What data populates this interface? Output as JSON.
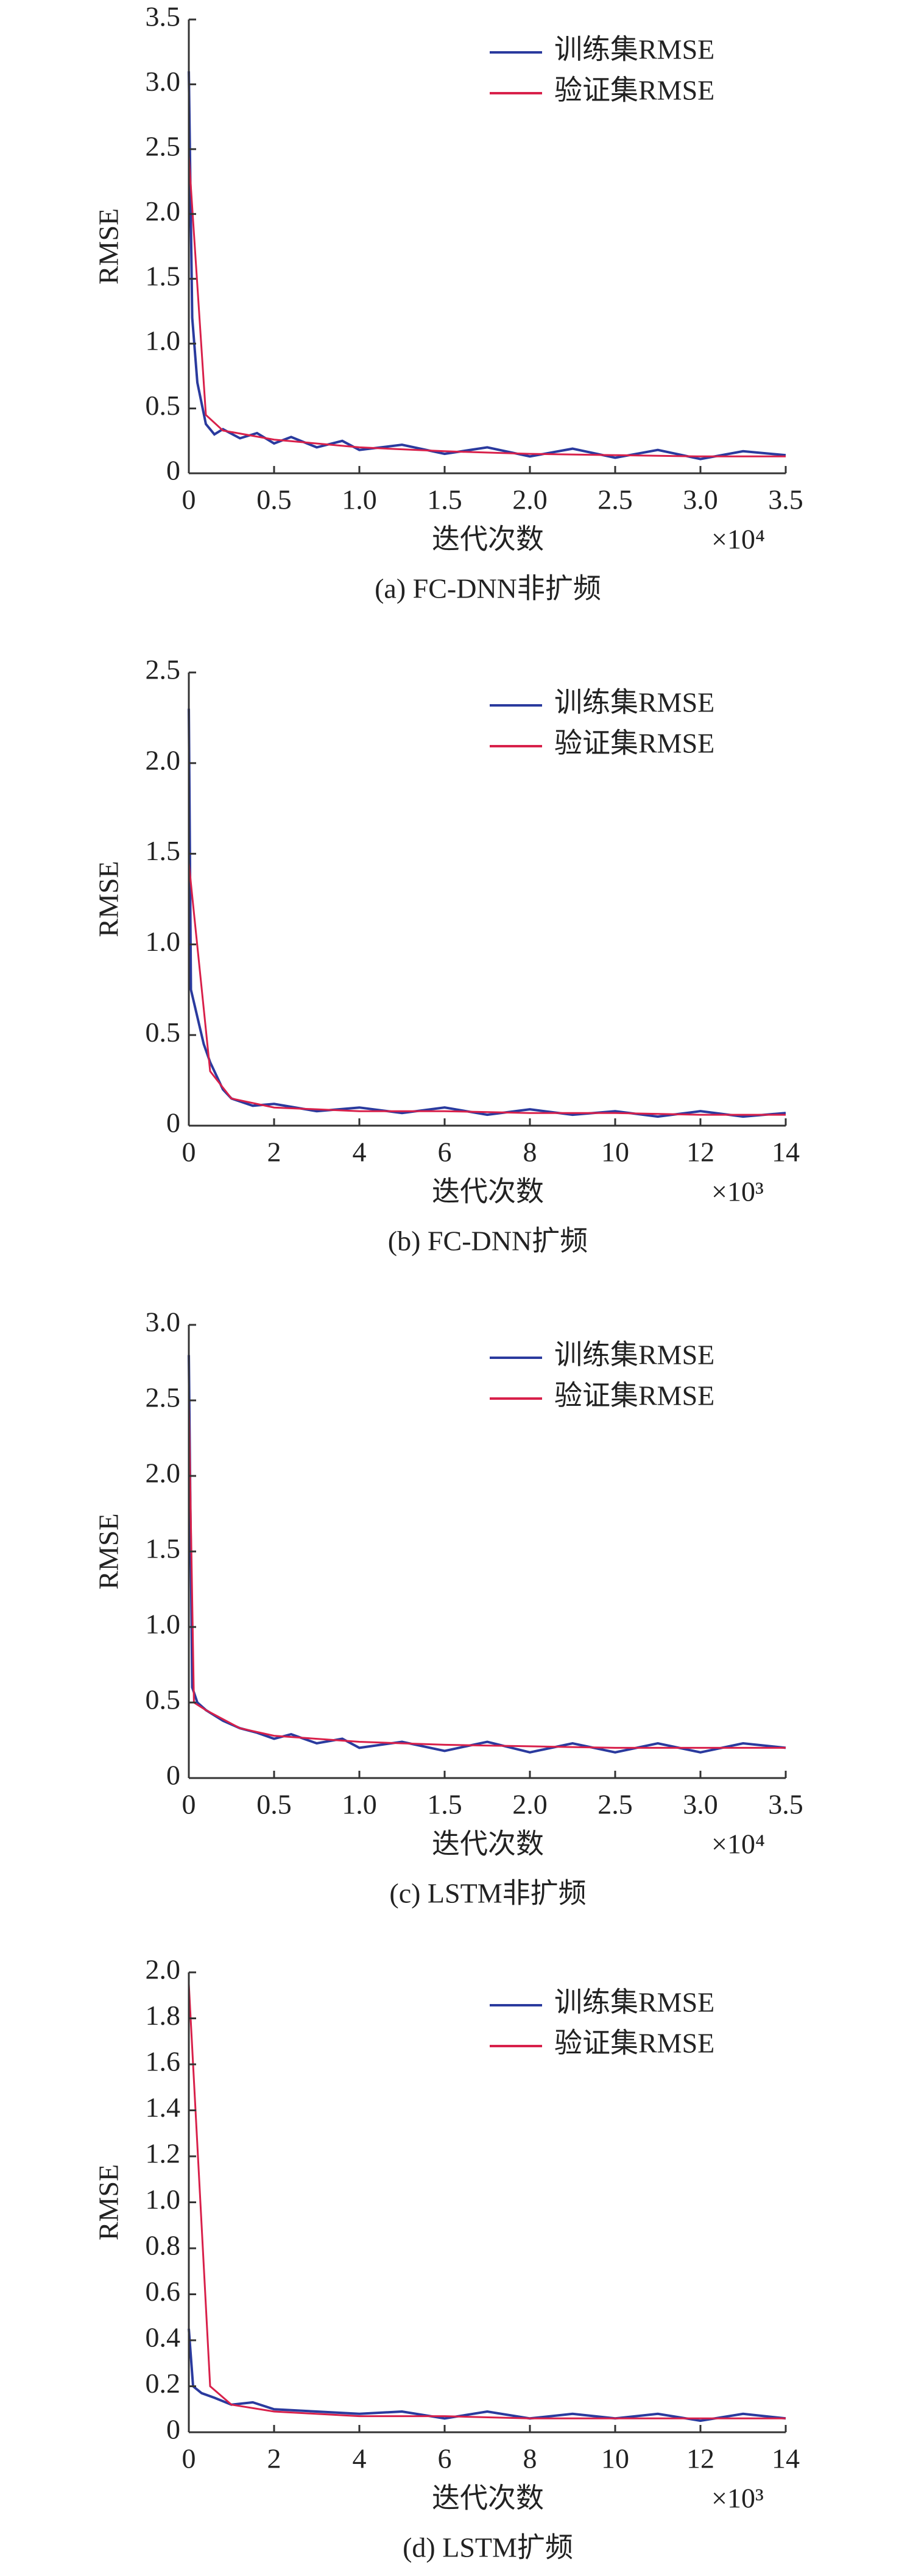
{
  "chart_data": [
    {
      "type": "line",
      "caption": "(a) FC-DNN非扩频",
      "ylabel": "RMSE",
      "xlabel": "迭代次数",
      "x_multiplier": "×10⁴",
      "xlim": [
        0,
        3.5
      ],
      "xticks": [
        0,
        0.5,
        {
          "value": 1,
          "label": "1.0"
        },
        1.5,
        {
          "value": 2,
          "label": "2.0"
        },
        2.5,
        {
          "value": 3,
          "label": "3.0"
        },
        3.5
      ],
      "ylim": [
        0,
        3.5
      ],
      "yticks": [
        0,
        0.5,
        {
          "value": 1,
          "label": "1.0"
        },
        1.5,
        {
          "value": 2,
          "label": "2.0"
        },
        2.5,
        {
          "value": 3,
          "label": "3.0"
        },
        3.5
      ],
      "legend": "upper right",
      "series": [
        {
          "name": "训练集RMSE",
          "color": "#2a3a9e",
          "x": [
            0,
            0.02,
            0.05,
            0.1,
            0.15,
            0.2,
            0.3,
            0.4,
            0.5,
            0.6,
            0.75,
            0.9,
            1,
            1.25,
            1.5,
            1.75,
            2,
            2.25,
            2.5,
            2.75,
            3,
            3.25,
            3.5
          ],
          "values": [
            3.1,
            1.2,
            0.7,
            0.38,
            0.3,
            0.34,
            0.27,
            0.31,
            0.23,
            0.28,
            0.2,
            0.25,
            0.18,
            0.22,
            0.15,
            0.2,
            0.13,
            0.19,
            0.12,
            0.18,
            0.11,
            0.17,
            0.14
          ]
        },
        {
          "name": "验证集RMSE",
          "color": "#d8204a",
          "x": [
            0,
            0.1,
            0.2,
            0.5,
            1,
            1.5,
            2,
            2.5,
            3,
            3.5
          ],
          "values": [
            2.45,
            0.45,
            0.33,
            0.26,
            0.2,
            0.17,
            0.15,
            0.14,
            0.13,
            0.13
          ]
        }
      ]
    },
    {
      "type": "line",
      "caption": "(b) FC-DNN扩频",
      "ylabel": "RMSE",
      "xlabel": "迭代次数",
      "x_multiplier": "×10³",
      "xlim": [
        0,
        14
      ],
      "xticks": [
        0,
        2,
        4,
        6,
        8,
        10,
        12,
        14
      ],
      "ylim": [
        0,
        2.5
      ],
      "yticks": [
        0,
        0.5,
        {
          "value": 1,
          "label": "1.0"
        },
        1.5,
        {
          "value": 2,
          "label": "2.0"
        },
        2.5
      ],
      "legend": "upper right",
      "series": [
        {
          "name": "训练集RMSE",
          "color": "#2a3a9e",
          "x": [
            0,
            0.05,
            0.2,
            0.35,
            0.5,
            0.8,
            1,
            1.5,
            2,
            3,
            4,
            5,
            6,
            7,
            8,
            9,
            10,
            11,
            12,
            13,
            14
          ],
          "values": [
            2.3,
            0.75,
            0.6,
            0.45,
            0.35,
            0.2,
            0.15,
            0.11,
            0.12,
            0.08,
            0.1,
            0.07,
            0.1,
            0.06,
            0.09,
            0.06,
            0.08,
            0.05,
            0.08,
            0.05,
            0.07
          ]
        },
        {
          "name": "验证集RMSE",
          "color": "#d8204a",
          "x": [
            0,
            0.5,
            1,
            2,
            4,
            6,
            8,
            10,
            12,
            14
          ],
          "values": [
            1.45,
            0.3,
            0.15,
            0.1,
            0.08,
            0.08,
            0.07,
            0.07,
            0.06,
            0.06
          ]
        }
      ]
    },
    {
      "type": "line",
      "caption": "(c) LSTM非扩频",
      "ylabel": "RMSE",
      "xlabel": "迭代次数",
      "x_multiplier": "×10⁴",
      "xlim": [
        0,
        3.5
      ],
      "xticks": [
        0,
        0.5,
        {
          "value": 1,
          "label": "1.0"
        },
        1.5,
        {
          "value": 2,
          "label": "2.0"
        },
        2.5,
        {
          "value": 3,
          "label": "3.0"
        },
        3.5
      ],
      "ylim": [
        0,
        3
      ],
      "yticks": [
        0,
        0.5,
        {
          "value": 1,
          "label": "1.0"
        },
        1.5,
        {
          "value": 2,
          "label": "2.0"
        },
        2.5,
        {
          "value": 3,
          "label": "3.0"
        }
      ],
      "legend": "upper right",
      "series": [
        {
          "name": "训练集RMSE",
          "color": "#2a3a9e",
          "x": [
            0,
            0.02,
            0.05,
            0.1,
            0.2,
            0.3,
            0.4,
            0.5,
            0.6,
            0.75,
            0.9,
            1,
            1.25,
            1.5,
            1.75,
            2,
            2.25,
            2.5,
            2.75,
            3,
            3.25,
            3.5
          ],
          "values": [
            2.8,
            0.6,
            0.5,
            0.45,
            0.38,
            0.33,
            0.3,
            0.26,
            0.29,
            0.23,
            0.26,
            0.2,
            0.24,
            0.18,
            0.24,
            0.17,
            0.23,
            0.17,
            0.23,
            0.17,
            0.23,
            0.2
          ]
        },
        {
          "name": "验证集RMSE",
          "color": "#d8204a",
          "x": [
            0,
            0.03,
            0.1,
            0.3,
            0.5,
            1,
            1.5,
            2,
            2.5,
            3,
            3.5
          ],
          "values": [
            2.5,
            0.5,
            0.45,
            0.33,
            0.28,
            0.24,
            0.22,
            0.21,
            0.2,
            0.2,
            0.2
          ]
        }
      ]
    },
    {
      "type": "line",
      "caption": "(d) LSTM扩频",
      "ylabel": "RMSE",
      "xlabel": "迭代次数",
      "x_multiplier": "×10³",
      "xlim": [
        0,
        14
      ],
      "xticks": [
        0,
        2,
        4,
        6,
        8,
        10,
        12,
        14
      ],
      "ylim": [
        0,
        2
      ],
      "yticks": [
        0,
        0.2,
        0.4,
        0.6,
        0.8,
        {
          "value": 1,
          "label": "1.0"
        },
        1.2,
        1.4,
        1.6,
        1.8,
        {
          "value": 2,
          "label": "2.0"
        }
      ],
      "legend": "upper right",
      "series": [
        {
          "name": "训练集RMSE",
          "color": "#2a3a9e",
          "x": [
            0,
            0.1,
            0.3,
            0.6,
            1,
            1.5,
            2,
            3,
            4,
            5,
            6,
            7,
            8,
            9,
            10,
            11,
            12,
            13,
            14
          ],
          "values": [
            0.45,
            0.2,
            0.17,
            0.15,
            0.12,
            0.13,
            0.1,
            0.09,
            0.08,
            0.09,
            0.06,
            0.09,
            0.06,
            0.08,
            0.06,
            0.08,
            0.05,
            0.08,
            0.06
          ]
        },
        {
          "name": "验证集RMSE",
          "color": "#d8204a",
          "x": [
            0,
            0.5,
            1,
            2,
            4,
            6,
            8,
            10,
            12,
            14
          ],
          "values": [
            1.95,
            0.2,
            0.12,
            0.09,
            0.07,
            0.07,
            0.06,
            0.06,
            0.06,
            0.06
          ]
        }
      ]
    }
  ]
}
